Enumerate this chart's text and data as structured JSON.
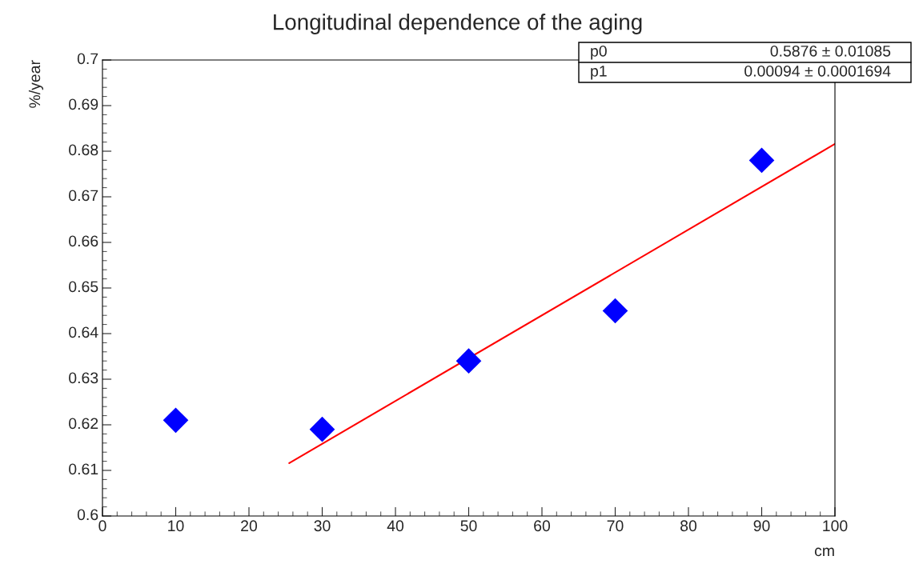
{
  "chart_data": {
    "type": "scatter",
    "title": "Longitudinal dependence of the aging",
    "xlabel": "cm",
    "ylabel": "%/year",
    "series": [
      {
        "color": "#0000ff",
        "marker": "diamond",
        "x": [
          10,
          30,
          50,
          70,
          90
        ],
        "values": [
          0.621,
          0.619,
          0.634,
          0.645,
          0.678
        ]
      },
      {
        "type": "line",
        "color": "#ff0000",
        "marker": "none",
        "x": [
          25.5,
          100
        ],
        "values": [
          0.6116,
          0.6816
        ]
      }
    ],
    "xlim": [
      0,
      100
    ],
    "xticks": [
      0,
      10,
      20,
      30,
      40,
      50,
      60,
      70,
      80,
      90,
      100
    ],
    "ylim": [
      0.6,
      0.7
    ],
    "yticks": [
      0.6,
      0.61,
      0.62,
      0.63,
      0.64,
      0.65,
      0.66,
      0.67,
      0.68,
      0.69,
      0.7
    ],
    "grid": false,
    "annotations": [
      "p0",
      "0.5876 ± 0.01085",
      "p1",
      "0.00094 ± 0.0001694"
    ]
  }
}
